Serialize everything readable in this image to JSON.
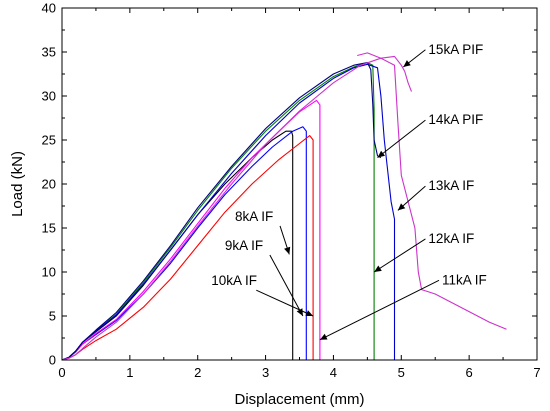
{
  "chart_data": {
    "type": "line",
    "xlabel": "Displacement (mm)",
    "ylabel": "Load (kN)",
    "xlim": [
      0,
      7
    ],
    "ylim": [
      0,
      40
    ],
    "xticks": [
      0,
      1,
      2,
      3,
      4,
      5,
      6,
      7
    ],
    "yticks": [
      0,
      5,
      10,
      15,
      20,
      25,
      30,
      35,
      40
    ],
    "xtick_labels": [
      "0",
      "1",
      "2",
      "3",
      "4",
      "5",
      "6",
      "7"
    ],
    "ytick_labels": [
      "0",
      "5",
      "10",
      "15",
      "20",
      "25",
      "30",
      "35",
      "40"
    ],
    "grid": false,
    "series": [
      {
        "name": "8kA IF",
        "color": "#000000",
        "x": [
          0,
          0.1,
          0.2,
          0.3,
          0.5,
          0.8,
          1.2,
          1.6,
          2.0,
          2.4,
          2.8,
          3.1,
          3.3,
          3.38,
          3.4,
          3.4
        ],
        "y": [
          0,
          0.3,
          1.0,
          2.0,
          3.2,
          5.0,
          8.5,
          12.5,
          16.5,
          20.0,
          23.0,
          25.0,
          26.0,
          26.0,
          25.5,
          0
        ]
      },
      {
        "name": "9kA IF",
        "color": "#0000ff",
        "x": [
          0,
          0.1,
          0.2,
          0.3,
          0.5,
          0.8,
          1.2,
          1.6,
          2.0,
          2.4,
          2.8,
          3.1,
          3.4,
          3.55,
          3.6,
          3.6
        ],
        "y": [
          0,
          0.3,
          0.9,
          1.8,
          2.9,
          4.5,
          7.5,
          11.0,
          15.0,
          18.8,
          22.0,
          24.2,
          26.0,
          26.5,
          26.0,
          0
        ]
      },
      {
        "name": "10kA IF",
        "color": "#ff0000",
        "x": [
          0,
          0.1,
          0.2,
          0.3,
          0.5,
          0.8,
          1.2,
          1.6,
          2.0,
          2.4,
          2.8,
          3.2,
          3.5,
          3.65,
          3.7,
          3.7
        ],
        "y": [
          0,
          0.2,
          0.6,
          1.2,
          2.2,
          3.5,
          6.0,
          9.2,
          13.0,
          16.8,
          20.0,
          22.8,
          24.6,
          25.5,
          25.0,
          0
        ]
      },
      {
        "name": "11kA IF",
        "color": "#ff00ff",
        "x": [
          0,
          0.1,
          0.2,
          0.3,
          0.5,
          0.8,
          1.2,
          1.6,
          2.0,
          2.4,
          2.8,
          3.2,
          3.5,
          3.75,
          3.8,
          3.8
        ],
        "y": [
          0,
          0.3,
          0.9,
          1.8,
          3.0,
          4.6,
          7.8,
          11.5,
          15.5,
          19.5,
          23.0,
          26.0,
          28.2,
          29.5,
          29.0,
          0
        ]
      },
      {
        "name": "12kA IF",
        "color": "#008000",
        "x": [
          0,
          0.1,
          0.2,
          0.3,
          0.5,
          0.8,
          1.2,
          1.6,
          2.0,
          2.5,
          3.0,
          3.5,
          4.0,
          4.3,
          4.5,
          4.58,
          4.6,
          4.6
        ],
        "y": [
          0,
          0.3,
          1.0,
          2.0,
          3.3,
          5.2,
          8.8,
          12.8,
          17.0,
          21.8,
          26.0,
          29.5,
          32.2,
          33.3,
          33.8,
          33.5,
          28.5,
          0
        ]
      },
      {
        "name": "13kA IF",
        "color": "#0000cd",
        "x": [
          0,
          0.1,
          0.2,
          0.3,
          0.5,
          0.8,
          1.2,
          1.6,
          2.0,
          2.5,
          3.0,
          3.5,
          4.0,
          4.3,
          4.5,
          4.65,
          4.7,
          4.75,
          4.85,
          4.9,
          4.9
        ],
        "y": [
          0,
          0.3,
          1.0,
          2.0,
          3.3,
          5.1,
          8.6,
          12.5,
          16.5,
          21.2,
          25.5,
          29.2,
          32.0,
          33.2,
          33.6,
          33.2,
          30.0,
          25.0,
          18.0,
          16.0,
          0
        ]
      },
      {
        "name": "14kA PIF",
        "color": "#000080",
        "x": [
          0,
          0.1,
          0.2,
          0.3,
          0.5,
          0.8,
          1.2,
          1.6,
          2.0,
          2.5,
          3.0,
          3.5,
          4.0,
          4.3,
          4.5,
          4.55,
          4.58,
          4.6,
          4.65,
          4.7
        ],
        "y": [
          0,
          0.3,
          1.0,
          2.0,
          3.4,
          5.4,
          9.0,
          13.0,
          17.3,
          22.0,
          26.3,
          29.8,
          32.5,
          33.5,
          33.8,
          33.0,
          29.0,
          25.0,
          23.2,
          23.0
        ]
      },
      {
        "name": "15kA PIF",
        "color": "#cc33cc",
        "x": [
          0,
          0.1,
          0.2,
          0.3,
          0.5,
          0.8,
          1.2,
          1.6,
          2.0,
          2.5,
          3.0,
          3.5,
          4.0,
          4.4,
          4.7,
          4.9,
          4.95,
          5.0,
          5.1,
          5.2,
          5.25,
          5.3,
          5.5,
          6.0,
          6.3,
          6.55
        ],
        "y": [
          0,
          0.2,
          0.6,
          1.3,
          2.6,
          4.3,
          7.5,
          11.2,
          15.2,
          20.0,
          24.5,
          28.3,
          31.5,
          33.5,
          34.3,
          33.5,
          27.0,
          21.0,
          18.0,
          15.0,
          10.0,
          8.0,
          7.5,
          5.5,
          4.3,
          3.5
        ]
      },
      {
        "name": "15kA PIF tail",
        "color": "#cc33cc",
        "x": [
          4.35,
          4.5,
          4.7,
          4.9,
          5.0,
          5.05,
          5.1,
          5.15
        ],
        "y": [
          34.6,
          34.9,
          34.3,
          34.5,
          33.5,
          32.8,
          31.5,
          30.5
        ]
      }
    ],
    "annotations": [
      {
        "text": "15kA PIF",
        "label_at": [
          5.4,
          34.8
        ],
        "arrow_to": [
          5.03,
          33.3
        ]
      },
      {
        "text": "14kA PIF",
        "label_at": [
          5.4,
          26.8
        ],
        "arrow_to": [
          4.65,
          23.0
        ]
      },
      {
        "text": "13kA IF",
        "label_at": [
          5.4,
          19.3
        ],
        "arrow_to": [
          4.95,
          17.0
        ]
      },
      {
        "text": "12kA IF",
        "label_at": [
          5.4,
          13.3
        ],
        "arrow_to": [
          4.6,
          10.0
        ]
      },
      {
        "text": "11kA IF",
        "label_at": [
          5.6,
          8.6
        ],
        "arrow_to": [
          3.8,
          2.3
        ]
      },
      {
        "text": "8kA IF",
        "label_at": [
          2.55,
          15.8
        ],
        "arrow_to": [
          3.35,
          12.0
        ]
      },
      {
        "text": "9kA IF",
        "label_at": [
          2.4,
          12.5
        ],
        "arrow_to": [
          3.55,
          5.0
        ]
      },
      {
        "text": "10kA IF",
        "label_at": [
          2.2,
          8.5
        ],
        "arrow_to": [
          3.7,
          5.0
        ]
      }
    ]
  }
}
